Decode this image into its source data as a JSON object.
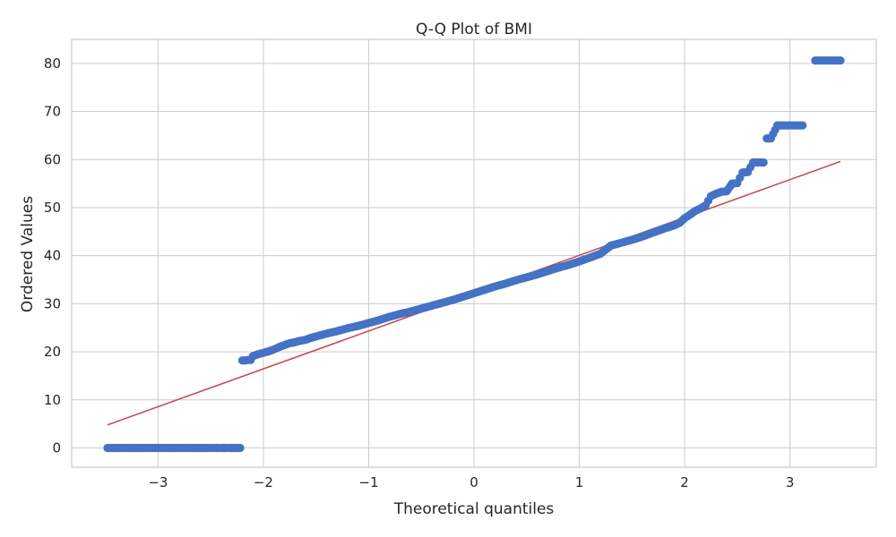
{
  "chart_data": {
    "type": "scatter",
    "title": "Q-Q Plot of BMI",
    "xlabel": "Theoretical quantiles",
    "ylabel": "Ordered Values",
    "xlim": [
      -3.82,
      3.82
    ],
    "ylim": [
      -4,
      85
    ],
    "xticks": [
      -3,
      -2,
      -1,
      0,
      1,
      2,
      3
    ],
    "xtick_labels": [
      "−3",
      "−2",
      "−1",
      "0",
      "1",
      "2",
      "3"
    ],
    "yticks": [
      0,
      10,
      20,
      30,
      40,
      50,
      60,
      70,
      80
    ],
    "ytick_labels": [
      "0",
      "10",
      "20",
      "30",
      "40",
      "50",
      "60",
      "70",
      "80"
    ],
    "grid": true,
    "colors": {
      "points": "#4472c4",
      "fit_line": "#c44e52"
    },
    "series": [
      {
        "kind": "points",
        "x": [
          -3.48,
          -3.24,
          -3.1,
          -2.99,
          -2.91,
          -2.84,
          -2.78,
          -2.73,
          -2.68,
          -2.63,
          -2.59,
          -2.55,
          -2.51,
          -2.48,
          -2.45,
          -2.42,
          -2.39,
          -2.36,
          -2.33,
          -2.31,
          -2.28,
          -2.26,
          -2.24,
          -2.22,
          -2.2,
          -2.17,
          -2.15,
          -2.12,
          -2.1,
          -2.05,
          -2.0,
          -1.95,
          -1.9,
          -1.85,
          -1.8,
          -1.75,
          -1.7,
          -1.65,
          -1.6,
          -1.55,
          -1.5,
          -1.4,
          -1.3,
          -1.2,
          -1.1,
          -1.0,
          -0.9,
          -0.8,
          -0.7,
          -0.6,
          -0.5,
          -0.4,
          -0.3,
          -0.2,
          -0.1,
          0.0,
          0.1,
          0.2,
          0.3,
          0.4,
          0.5,
          0.6,
          0.7,
          0.8,
          0.9,
          1.0,
          1.1,
          1.2,
          1.3,
          1.4,
          1.5,
          1.6,
          1.7,
          1.8,
          1.9,
          1.95,
          2.0,
          2.05,
          2.1,
          2.15,
          2.2,
          2.25,
          2.3,
          2.35,
          2.4,
          2.45,
          2.5,
          2.55,
          2.6,
          2.65,
          2.7,
          2.75,
          2.78,
          2.82,
          2.88,
          2.95,
          3.02,
          3.12,
          3.24,
          3.48
        ],
        "y": [
          0,
          0,
          0,
          0,
          0,
          0,
          0,
          0,
          0,
          0,
          0,
          0,
          0,
          0,
          0,
          0,
          0,
          0,
          0,
          0,
          0,
          0,
          0,
          0,
          18.2,
          18.2,
          18.3,
          18.3,
          19.1,
          19.5,
          19.8,
          20.1,
          20.5,
          21.0,
          21.4,
          21.8,
          22.0,
          22.3,
          22.5,
          22.9,
          23.2,
          23.8,
          24.3,
          24.9,
          25.4,
          26.0,
          26.6,
          27.3,
          27.9,
          28.4,
          29.0,
          29.6,
          30.2,
          30.8,
          31.5,
          32.2,
          32.9,
          33.6,
          34.2,
          34.9,
          35.5,
          36.1,
          36.8,
          37.5,
          38.1,
          38.8,
          39.6,
          40.4,
          42.1,
          42.7,
          43.3,
          44.0,
          44.8,
          45.6,
          46.3,
          46.8,
          47.8,
          48.5,
          49.3,
          49.8,
          50.5,
          52.4,
          52.9,
          53.3,
          53.4,
          55.0,
          55.1,
          57.3,
          57.4,
          59.4,
          59.4,
          59.4,
          64.4,
          64.4,
          67.1,
          67.1,
          67.1,
          67.1,
          80.6,
          80.6
        ]
      },
      {
        "kind": "line",
        "x": [
          -3.48,
          3.48
        ],
        "y": [
          4.8,
          59.6
        ]
      }
    ]
  }
}
